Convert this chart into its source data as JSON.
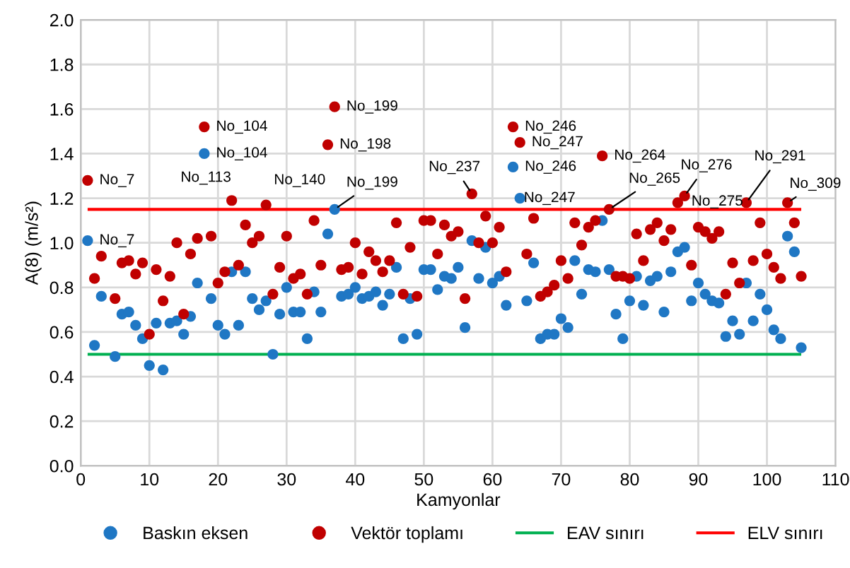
{
  "chart_data": {
    "type": "scatter",
    "xlabel": "Kamyonlar",
    "ylabel": "A(8) (m/s²)",
    "xlim": [
      0,
      110
    ],
    "xticks": [
      0,
      10,
      20,
      30,
      40,
      50,
      60,
      70,
      80,
      90,
      100,
      110
    ],
    "ylim": [
      0,
      2.0
    ],
    "yticks": [
      {
        "value": 0,
        "label": "0.0"
      },
      {
        "value": 0.2,
        "label": "0.2"
      },
      {
        "value": 0.4,
        "label": "0.4"
      },
      {
        "value": 0.6,
        "label": "0.6"
      },
      {
        "value": 0.8,
        "label": "0.8"
      },
      {
        "value": 1.0,
        "label": "1.0"
      },
      {
        "value": 1.2,
        "label": "1.2"
      },
      {
        "value": 1.4,
        "label": "1.4"
      },
      {
        "value": 1.6,
        "label": "1.6"
      },
      {
        "value": 1.8,
        "label": "1.8"
      },
      {
        "value": 2.0,
        "label": "2.0"
      }
    ],
    "grid": true,
    "legend": "bottom",
    "marker": "circle",
    "x": [
      1,
      2,
      3,
      5,
      6,
      7,
      8,
      9,
      10,
      11,
      12,
      13,
      14,
      15,
      16,
      17,
      18,
      19,
      20,
      21,
      22,
      23,
      24,
      25,
      26,
      27,
      28,
      29,
      30,
      31,
      32,
      33,
      34,
      35,
      36,
      37,
      38,
      39,
      40,
      41,
      42,
      43,
      44,
      45,
      46,
      47,
      48,
      49,
      50,
      51,
      52,
      53,
      54,
      55,
      56,
      57,
      58,
      59,
      60,
      61,
      62,
      63,
      64,
      65,
      66,
      67,
      68,
      69,
      70,
      71,
      72,
      73,
      74,
      75,
      76,
      77,
      78,
      79,
      80,
      81,
      82,
      83,
      84,
      85,
      86,
      87,
      88,
      89,
      90,
      91,
      92,
      93,
      94,
      95,
      96,
      97,
      98,
      99,
      100,
      101,
      102,
      103,
      104,
      105
    ],
    "series": [
      {
        "name": "Baskın eksen",
        "color": "#1f77c4",
        "values": [
          1.01,
          0.54,
          0.76,
          0.49,
          0.68,
          0.69,
          0.63,
          0.57,
          0.45,
          0.64,
          0.43,
          0.64,
          0.65,
          0.59,
          0.67,
          0.82,
          1.4,
          0.75,
          0.63,
          0.59,
          0.87,
          0.63,
          0.87,
          0.75,
          0.7,
          0.74,
          0.5,
          0.68,
          0.8,
          0.69,
          0.69,
          0.57,
          0.78,
          0.69,
          1.04,
          1.15,
          0.76,
          0.77,
          0.8,
          0.75,
          0.76,
          0.78,
          0.72,
          0.77,
          0.89,
          0.57,
          0.75,
          0.59,
          0.88,
          0.88,
          0.79,
          0.85,
          0.84,
          0.89,
          0.62,
          1.01,
          0.84,
          0.98,
          0.82,
          0.85,
          0.72,
          1.34,
          1.2,
          0.74,
          0.91,
          0.57,
          0.59,
          0.59,
          0.66,
          0.62,
          0.92,
          0.77,
          0.88,
          0.87,
          1.1,
          0.88,
          0.68,
          0.57,
          0.74,
          0.85,
          0.72,
          0.83,
          0.85,
          0.69,
          0.87,
          0.96,
          0.98,
          0.74,
          0.82,
          0.77,
          0.74,
          0.73,
          0.58,
          0.65,
          0.59,
          0.82,
          0.65,
          0.77,
          0.7,
          0.61,
          0.57,
          1.03,
          0.96,
          0.53
        ]
      },
      {
        "name": "Vektör toplamı",
        "color": "#c00000",
        "values": [
          1.28,
          0.84,
          0.94,
          0.75,
          0.91,
          0.92,
          0.86,
          0.91,
          0.59,
          0.88,
          0.74,
          0.85,
          1.0,
          0.68,
          0.95,
          1.02,
          1.52,
          1.03,
          0.82,
          0.87,
          1.19,
          0.9,
          1.08,
          1.0,
          1.03,
          1.17,
          0.77,
          0.89,
          1.03,
          0.84,
          0.86,
          0.77,
          1.1,
          0.9,
          1.44,
          1.61,
          0.88,
          0.89,
          1.0,
          0.86,
          0.96,
          0.92,
          0.87,
          0.92,
          1.09,
          0.77,
          0.98,
          0.76,
          1.1,
          1.1,
          0.95,
          1.08,
          1.03,
          1.05,
          0.75,
          1.22,
          1.0,
          1.12,
          1.0,
          1.07,
          0.87,
          1.52,
          1.45,
          0.95,
          1.11,
          0.76,
          0.78,
          0.81,
          0.92,
          0.84,
          1.09,
          0.99,
          1.07,
          1.1,
          1.39,
          1.15,
          0.85,
          0.85,
          0.84,
          1.04,
          0.92,
          1.06,
          1.09,
          1.01,
          1.06,
          1.18,
          1.21,
          0.9,
          1.07,
          1.05,
          1.02,
          1.05,
          0.77,
          0.91,
          0.82,
          1.18,
          0.92,
          1.09,
          0.95,
          0.89,
          0.84,
          1.18,
          1.09,
          0.85
        ]
      }
    ],
    "ref_lines": [
      {
        "axis": "y",
        "value": 0.5,
        "label": "EAV sınırı",
        "color": "#00b050"
      },
      {
        "axis": "y",
        "value": 1.15,
        "label": "ELV sınırı",
        "color": "#ff0000"
      }
    ],
    "annotations": [
      {
        "text": "No_7",
        "x": 1,
        "y": 1.28
      },
      {
        "text": "No_7",
        "x": 1,
        "y": 1.01
      },
      {
        "text": "No_104",
        "x": 18,
        "y": 1.52
      },
      {
        "text": "No_104",
        "x": 18,
        "y": 1.4
      },
      {
        "text": "No_113",
        "x": 22,
        "y": 1.19
      },
      {
        "text": "No_140",
        "x": 27,
        "y": 1.17
      },
      {
        "text": "No_199",
        "x": 37,
        "y": 1.61
      },
      {
        "text": "No_198",
        "x": 36,
        "y": 1.44
      },
      {
        "text": "No_199",
        "x": 37,
        "y": 1.15
      },
      {
        "text": "No_237",
        "x": 57,
        "y": 1.22
      },
      {
        "text": "No_246",
        "x": 63,
        "y": 1.52
      },
      {
        "text": "No_247",
        "x": 64,
        "y": 1.45
      },
      {
        "text": "No_246",
        "x": 63,
        "y": 1.34
      },
      {
        "text": "No_247",
        "x": 64,
        "y": 1.2
      },
      {
        "text": "No_264",
        "x": 76,
        "y": 1.39
      },
      {
        "text": "No_265",
        "x": 77,
        "y": 1.15
      },
      {
        "text": "No_276",
        "x": 88,
        "y": 1.21
      },
      {
        "text": "No_275",
        "x": 87,
        "y": 1.18
      },
      {
        "text": "No_291",
        "x": 97,
        "y": 1.18
      },
      {
        "text": "No_309",
        "x": 103,
        "y": 1.18
      }
    ]
  }
}
